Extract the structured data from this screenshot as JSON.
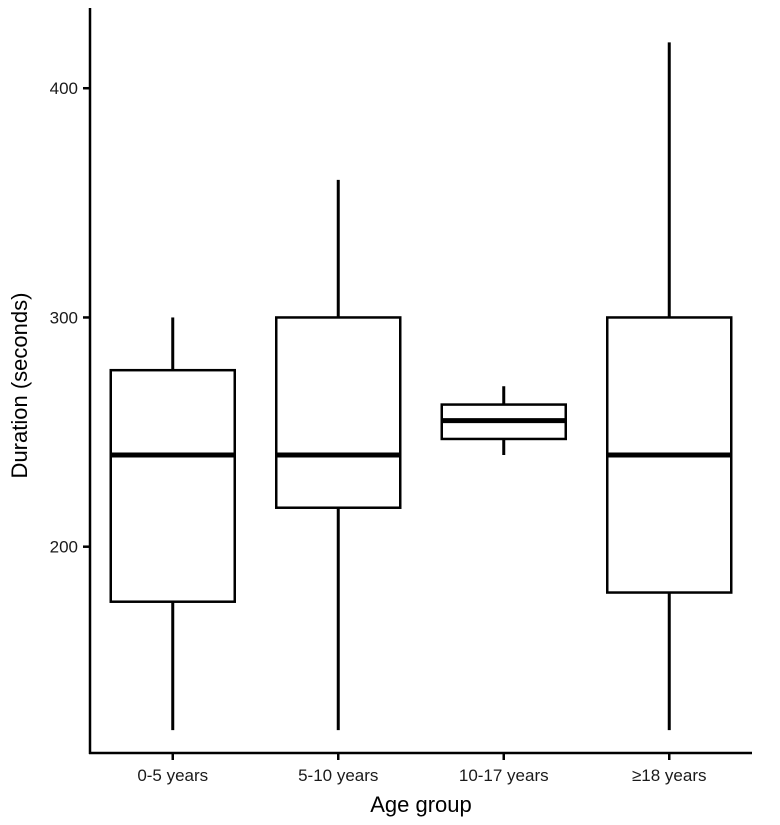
{
  "chart_data": {
    "type": "boxplot",
    "xlabel": "Age group",
    "ylabel": "Duration (seconds)",
    "ylim": [
      110,
      435
    ],
    "y_ticks": [
      200,
      300,
      400
    ],
    "grid": false,
    "categories": [
      "0-5 years",
      "5-10 years",
      "10-17 years",
      "≥18 years"
    ],
    "boxes": [
      {
        "category": "0-5 years",
        "min": 120,
        "q1": 176,
        "median": 240,
        "q3": 277,
        "max": 300
      },
      {
        "category": "5-10 years",
        "min": 120,
        "q1": 217,
        "median": 240,
        "q3": 300,
        "max": 360
      },
      {
        "category": "10-17 years",
        "min": 240,
        "q1": 247,
        "median": 255,
        "q3": 262,
        "max": 270
      },
      {
        "category": "≥18 years",
        "min": 120,
        "q1": 180,
        "median": 240,
        "q3": 300,
        "max": 420
      }
    ]
  }
}
